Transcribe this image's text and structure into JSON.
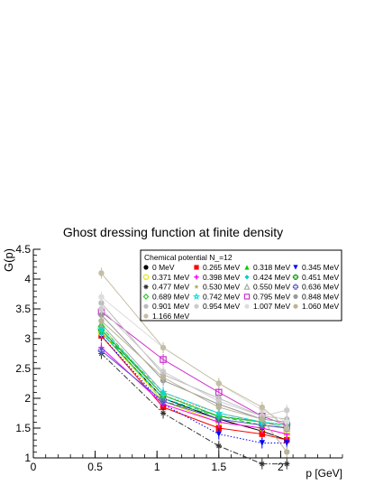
{
  "chart_data": {
    "type": "line",
    "title": "Ghost dressing function at finite density",
    "xlabel": "p [GeV]",
    "ylabel": "G(p)",
    "xlim": [
      0,
      2.5
    ],
    "ylim": [
      1,
      4.5
    ],
    "xticks": [
      "0",
      "0.5",
      "1",
      "1.5",
      "2"
    ],
    "yticks": [
      "1",
      "1.5",
      "2",
      "2.5",
      "3",
      "3.5",
      "4",
      "4.5"
    ],
    "legend_title": "Chemical potential N_=12",
    "legend_position": "top-right",
    "x": [
      0.55,
      1.05,
      1.5,
      1.85,
      2.05
    ],
    "series": [
      {
        "name": "0 MeV",
        "color": "#000000",
        "marker": "circle",
        "dash": "solid",
        "values": [
          3.1,
          2.0,
          1.65,
          1.45,
          1.3
        ]
      },
      {
        "name": "0.265 MeV",
        "color": "#ff0000",
        "marker": "square",
        "dash": "solid",
        "values": [
          3.05,
          1.85,
          1.5,
          1.4,
          1.3
        ]
      },
      {
        "name": "0.318 MeV",
        "color": "#00cc00",
        "marker": "triangle-up",
        "dash": "dashed",
        "values": [
          3.15,
          1.95,
          1.7,
          1.55,
          1.5
        ]
      },
      {
        "name": "0.345 MeV",
        "color": "#0000ff",
        "marker": "triangle-down",
        "dash": "dotted",
        "values": [
          3.05,
          1.9,
          1.4,
          1.25,
          1.25
        ]
      },
      {
        "name": "0.371 MeV",
        "color": "#e6e600",
        "marker": "circle-open",
        "dash": "solid",
        "values": [
          3.1,
          1.95,
          1.6,
          1.5,
          1.4
        ]
      },
      {
        "name": "0.398 MeV",
        "color": "#ff00ff",
        "marker": "plus",
        "dash": "solid",
        "values": [
          2.85,
          1.9,
          1.6,
          1.5,
          1.4
        ]
      },
      {
        "name": "0.424 MeV",
        "color": "#00cccc",
        "marker": "diamond",
        "dash": "dashed",
        "values": [
          3.1,
          2.0,
          1.7,
          1.6,
          1.55
        ]
      },
      {
        "name": "0.451 MeV",
        "color": "#009900",
        "marker": "cross-open",
        "dash": "solid",
        "values": [
          3.15,
          2.05,
          1.7,
          1.6,
          1.55
        ]
      },
      {
        "name": "0.477 MeV",
        "color": "#333333",
        "marker": "asterisk",
        "dash": "dashdot",
        "values": [
          2.75,
          1.75,
          1.2,
          0.9,
          0.9
        ]
      },
      {
        "name": "0.530 MeV",
        "color": "#aaaa66",
        "marker": "star",
        "dash": "dotted",
        "values": [
          3.2,
          2.05,
          1.75,
          1.6,
          1.5
        ]
      },
      {
        "name": "0.550 MeV",
        "color": "#aaaaaa",
        "marker": "triangle-open",
        "dash": "solid",
        "values": [
          3.25,
          2.1,
          1.75,
          1.6,
          1.5
        ]
      },
      {
        "name": "0.636 MeV",
        "color": "#5555cc",
        "marker": "cross-open",
        "dash": "solid",
        "values": [
          2.8,
          1.95,
          1.65,
          1.55,
          1.5
        ]
      },
      {
        "name": "0.689 MeV",
        "color": "#33cc33",
        "marker": "diamond-open",
        "dash": "dashed",
        "values": [
          3.2,
          2.05,
          1.7,
          1.6,
          1.55
        ]
      },
      {
        "name": "0.742 MeV",
        "color": "#00dddd",
        "marker": "star-open",
        "dash": "dashed",
        "values": [
          3.15,
          2.1,
          1.75,
          1.6,
          1.55
        ]
      },
      {
        "name": "0.795 MeV",
        "color": "#cc33cc",
        "marker": "square-open",
        "dash": "solid",
        "values": [
          3.45,
          2.65,
          2.1,
          1.7,
          1.55
        ]
      },
      {
        "name": "0.848 MeV",
        "color": "#999999",
        "marker": "circle",
        "dash": "solid",
        "values": [
          3.4,
          2.3,
          1.9,
          1.65,
          1.6
        ]
      },
      {
        "name": "0.901 MeV",
        "color": "#bbbbbb",
        "marker": "circle",
        "dash": "solid",
        "values": [
          3.6,
          2.4,
          2.0,
          1.7,
          1.65
        ]
      },
      {
        "name": "0.954 MeV",
        "color": "#cccccc",
        "marker": "circle",
        "dash": "solid",
        "values": [
          3.5,
          2.45,
          1.95,
          1.7,
          1.8
        ]
      },
      {
        "name": "1.007 MeV",
        "color": "#dddddd",
        "marker": "circle",
        "dash": "solid",
        "values": [
          3.7,
          2.85,
          2.25,
          1.8,
          1.6
        ]
      },
      {
        "name": "1.060 MeV",
        "color": "#bbb49a",
        "marker": "circle",
        "dash": "solid",
        "values": [
          3.3,
          2.35,
          1.85,
          1.65,
          1.1
        ]
      },
      {
        "name": "1.166 MeV",
        "color": "#c4bfa4",
        "marker": "circle",
        "dash": "solid",
        "values": [
          4.1,
          2.85,
          2.25,
          1.85,
          1.5
        ]
      }
    ]
  }
}
